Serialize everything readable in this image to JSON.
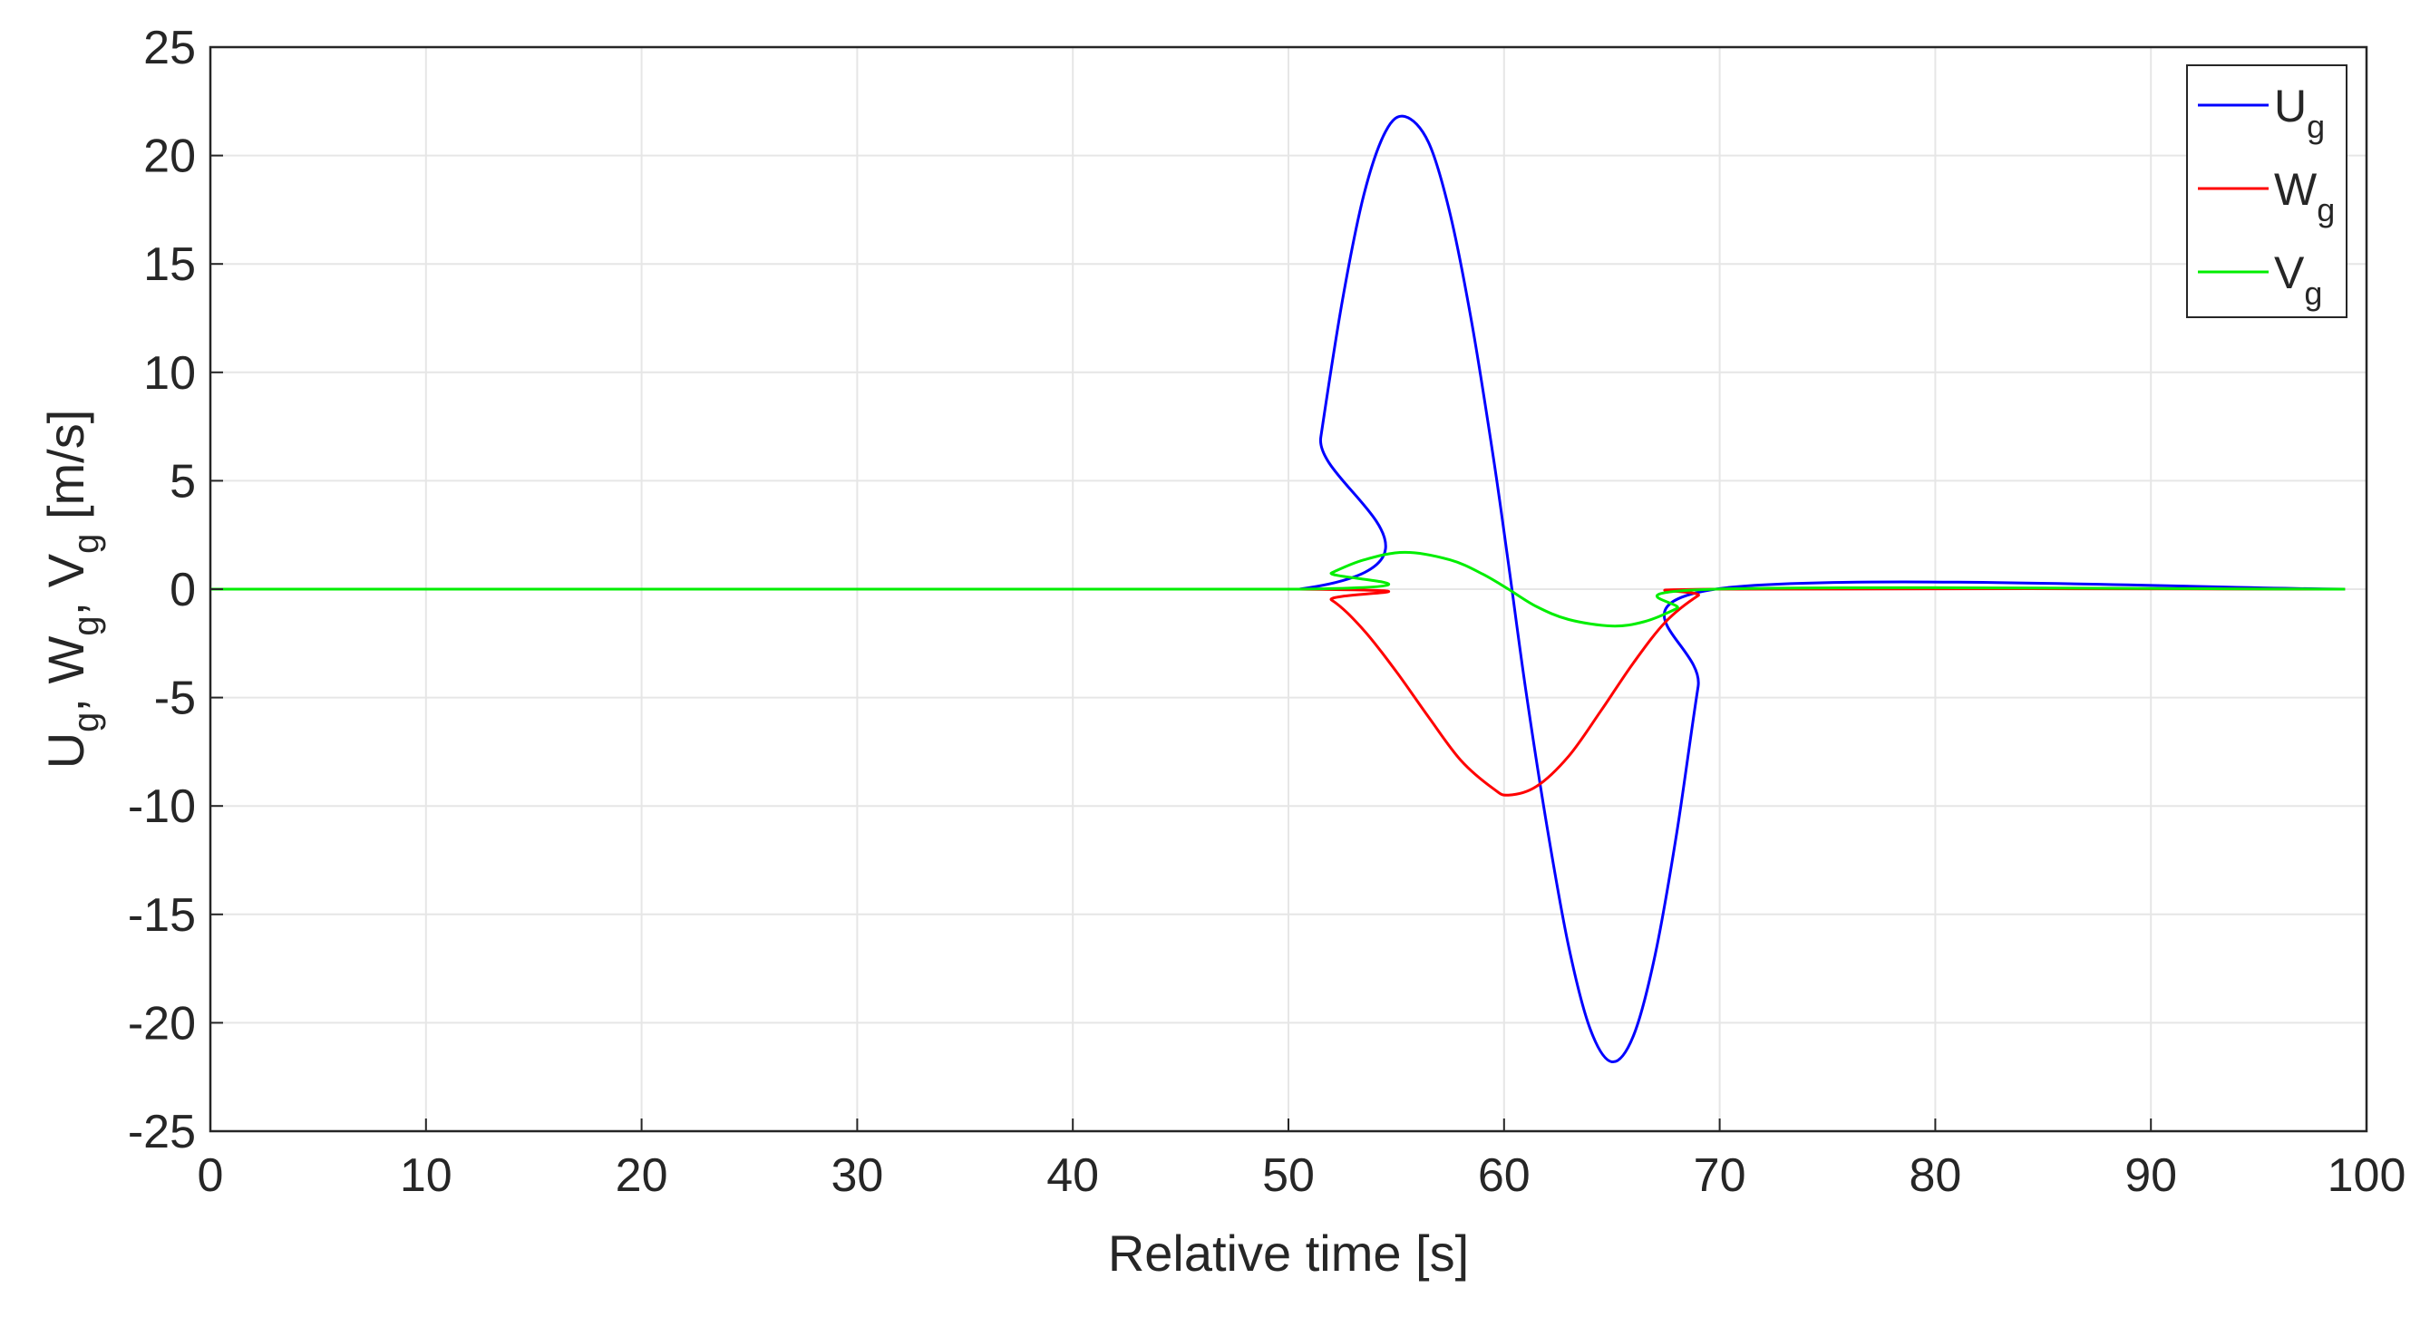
{
  "chart_data": {
    "type": "line",
    "title": "",
    "xlabel": "Relative time [s]",
    "ylabel": "U_g, W_g, V_g [m/s]",
    "ylabel_parts": {
      "U": "U",
      "W": "W",
      "V": "V",
      "sub": "g",
      "sep": ", ",
      "unit": " [m/s]"
    },
    "xlim": [
      0,
      100
    ],
    "ylim": [
      -25,
      25
    ],
    "xticks": [
      0,
      10,
      20,
      30,
      40,
      50,
      60,
      70,
      80,
      90,
      100
    ],
    "yticks": [
      25,
      20,
      15,
      10,
      5,
      0,
      -5,
      -10,
      -15,
      -20,
      -25
    ],
    "xtick_labels": [
      "0",
      "10",
      "20",
      "30",
      "40",
      "50",
      "60",
      "70",
      "80",
      "90",
      "100"
    ],
    "ytick_labels": [
      "25",
      "20",
      "15",
      "10",
      "5",
      "0",
      "-5",
      "-10",
      "-15",
      "-20",
      "-25"
    ],
    "grid": true,
    "legend_position": "top-right",
    "series": [
      {
        "name": "U_g",
        "label_main": "U",
        "label_sub": "g",
        "color": "#0000ff",
        "x": [
          0,
          50.5,
          51.5,
          52.5,
          53.5,
          54.5,
          55.4,
          56.5,
          57.5,
          58.5,
          59.5,
          60.2,
          61.0,
          62.0,
          63.0,
          64.0,
          65.0,
          66.0,
          67.0,
          68.0,
          69.0,
          69.8,
          99
        ],
        "y": [
          0,
          0,
          7.0,
          13.3,
          18.2,
          21.1,
          21.8,
          20.6,
          17.3,
          12.3,
          6.1,
          1.2,
          -4.6,
          -11.0,
          -16.5,
          -20.3,
          -21.8,
          -20.6,
          -16.9,
          -11.3,
          -4.5,
          0,
          0
        ]
      },
      {
        "name": "W_g",
        "label_main": "W",
        "label_sub": "g",
        "color": "#ff0000",
        "x": [
          0,
          50.5,
          52.0,
          53.5,
          55.0,
          56.5,
          58.0,
          59.5,
          60.2,
          61.5,
          63.0,
          64.5,
          66.0,
          67.5,
          69.0,
          69.8,
          99
        ],
        "y": [
          0,
          0,
          -0.5,
          -1.9,
          -3.8,
          -5.9,
          -7.9,
          -9.2,
          -9.5,
          -9.1,
          -7.7,
          -5.6,
          -3.4,
          -1.5,
          -0.3,
          0,
          0
        ]
      },
      {
        "name": "V_g",
        "label_main": "V",
        "label_sub": "g",
        "color": "#00ee00",
        "x": [
          0,
          50.5,
          52.0,
          53.5,
          55.4,
          57.5,
          59.0,
          60.2,
          61.5,
          63.0,
          65.0,
          66.5,
          68.0,
          69.8,
          99
        ],
        "y": [
          0,
          0,
          0.75,
          1.35,
          1.7,
          1.35,
          0.7,
          0,
          -0.8,
          -1.4,
          -1.7,
          -1.5,
          -0.9,
          0,
          0
        ]
      }
    ]
  }
}
